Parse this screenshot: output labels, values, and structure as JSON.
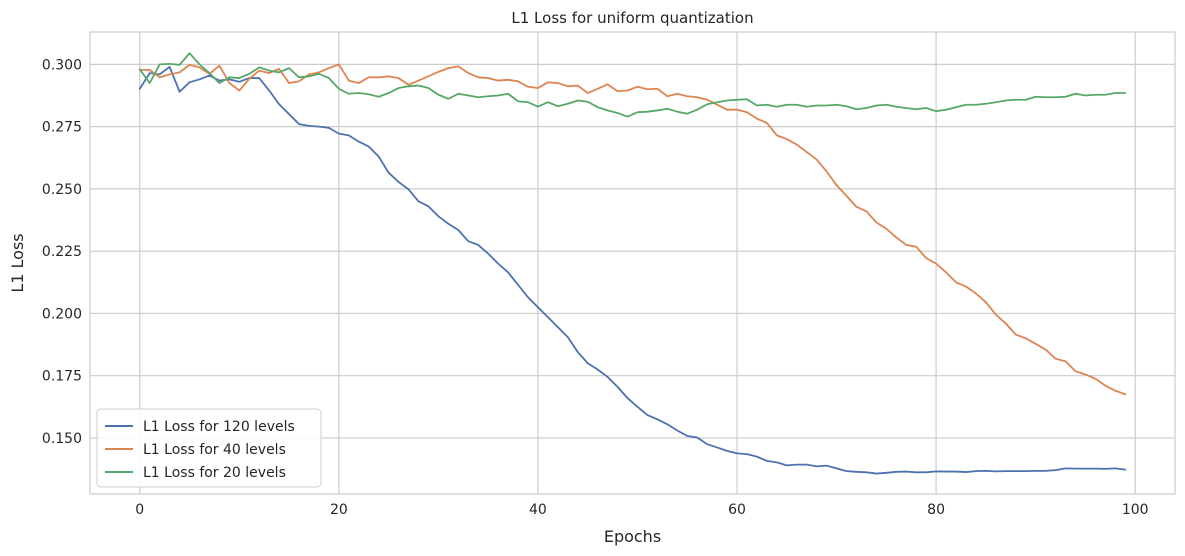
{
  "chart_data": {
    "type": "line",
    "title": "L1 Loss for uniform quantization",
    "xlabel": "Epochs",
    "ylabel": "L1 Loss",
    "xlim": [
      -5,
      104
    ],
    "ylim": [
      0.1275,
      0.313
    ],
    "x_ticks": [
      0,
      20,
      40,
      60,
      80,
      100
    ],
    "y_ticks": [
      0.15,
      0.175,
      0.2,
      0.225,
      0.25,
      0.275,
      0.3
    ],
    "x_tick_labels": [
      "0",
      "20",
      "40",
      "60",
      "80",
      "100"
    ],
    "y_tick_labels": [
      "0.150",
      "0.175",
      "0.200",
      "0.225",
      "0.250",
      "0.275",
      "0.300"
    ],
    "grid": true,
    "legend_position": "lower-left",
    "series": [
      {
        "name": "L1 Loss for 120 levels",
        "color": "#4c72b0",
        "values": [
          0.2902,
          0.2965,
          0.296,
          0.299,
          0.289,
          0.2928,
          0.294,
          0.2955,
          0.2935,
          0.294,
          0.293,
          0.2945,
          0.2945,
          0.2895,
          0.284,
          0.28,
          0.276,
          0.2753,
          0.275,
          0.2745,
          0.2722,
          0.2715,
          0.269,
          0.267,
          0.263,
          0.2565,
          0.2528,
          0.2498,
          0.245,
          0.243,
          0.239,
          0.236,
          0.2335,
          0.229,
          0.2275,
          0.224,
          0.22,
          0.2165,
          0.2115,
          0.2065,
          0.2025,
          0.1985,
          0.1945,
          0.1905,
          0.1845,
          0.18,
          0.1775,
          0.1745,
          0.1705,
          0.166,
          0.1625,
          0.1592,
          0.1575,
          0.1555,
          0.153,
          0.1508,
          0.1502,
          0.1475,
          0.1462,
          0.1448,
          0.1438,
          0.1435,
          0.1425,
          0.1408,
          0.1402,
          0.139,
          0.1393,
          0.1393,
          0.1386,
          0.1389,
          0.1378,
          0.1367,
          0.1364,
          0.1362,
          0.1357,
          0.136,
          0.1364,
          0.1365,
          0.1362,
          0.1362,
          0.1366,
          0.1365,
          0.1365,
          0.1363,
          0.1367,
          0.1368,
          0.1366,
          0.1367,
          0.1367,
          0.1367,
          0.1368,
          0.1368,
          0.1371,
          0.1378,
          0.1377,
          0.1377,
          0.1377,
          0.1376,
          0.1378,
          0.1373
        ]
      },
      {
        "name": "L1 Loss for 40 levels",
        "color": "#dd8452",
        "values": [
          0.2978,
          0.2978,
          0.2948,
          0.296,
          0.2968,
          0.2998,
          0.2988,
          0.2962,
          0.2995,
          0.2925,
          0.2895,
          0.2942,
          0.2975,
          0.2965,
          0.2982,
          0.2925,
          0.2932,
          0.296,
          0.2968,
          0.2985,
          0.3,
          0.2935,
          0.2925,
          0.2948,
          0.2948,
          0.2952,
          0.2945,
          0.2918,
          0.2935,
          0.2952,
          0.297,
          0.2985,
          0.2992,
          0.2965,
          0.2948,
          0.2945,
          0.2935,
          0.2938,
          0.2932,
          0.291,
          0.2905,
          0.2928,
          0.2925,
          0.2912,
          0.2915,
          0.2885,
          0.2902,
          0.292,
          0.2892,
          0.2895,
          0.291,
          0.29,
          0.2902,
          0.2872,
          0.2882,
          0.2872,
          0.2868,
          0.2858,
          0.2838,
          0.2818,
          0.2818,
          0.2808,
          0.2782,
          0.2765,
          0.2715,
          0.27,
          0.2678,
          0.2648,
          0.2618,
          0.257,
          0.2515,
          0.2472,
          0.2428,
          0.241,
          0.2365,
          0.234,
          0.2305,
          0.2275,
          0.2268,
          0.2222,
          0.22,
          0.2165,
          0.2125,
          0.2108,
          0.208,
          0.2045,
          0.1995,
          0.196,
          0.1915,
          0.19,
          0.1878,
          0.1855,
          0.1818,
          0.1808,
          0.1768,
          0.1755,
          0.1738,
          0.171,
          0.169,
          0.1675
        ]
      },
      {
        "name": "L1 Loss for 20 levels",
        "color": "#55a868",
        "values": [
          0.298,
          0.2925,
          0.3,
          0.3002,
          0.2998,
          0.3045,
          0.3,
          0.2965,
          0.2925,
          0.2948,
          0.2945,
          0.2962,
          0.2988,
          0.2975,
          0.2968,
          0.2985,
          0.2948,
          0.2952,
          0.2962,
          0.2945,
          0.2902,
          0.2882,
          0.2885,
          0.288,
          0.287,
          0.2885,
          0.2905,
          0.2912,
          0.2915,
          0.2905,
          0.2878,
          0.2862,
          0.2882,
          0.2875,
          0.2868,
          0.2872,
          0.2875,
          0.2882,
          0.2852,
          0.2848,
          0.283,
          0.2848,
          0.2832,
          0.2842,
          0.2855,
          0.285,
          0.2828,
          0.2815,
          0.2805,
          0.279,
          0.2808,
          0.281,
          0.2815,
          0.2822,
          0.281,
          0.2802,
          0.2818,
          0.284,
          0.2848,
          0.2855,
          0.2858,
          0.286,
          0.2835,
          0.2838,
          0.283,
          0.2838,
          0.2838,
          0.283,
          0.2835,
          0.2835,
          0.2838,
          0.2832,
          0.282,
          0.2825,
          0.2835,
          0.2838,
          0.283,
          0.2825,
          0.282,
          0.2825,
          0.2812,
          0.2818,
          0.2828,
          0.2838,
          0.2838,
          0.2842,
          0.2848,
          0.2855,
          0.2858,
          0.2858,
          0.287,
          0.2868,
          0.2868,
          0.287,
          0.2882,
          0.2875,
          0.2878,
          0.2878,
          0.2885,
          0.2885
        ]
      }
    ]
  }
}
